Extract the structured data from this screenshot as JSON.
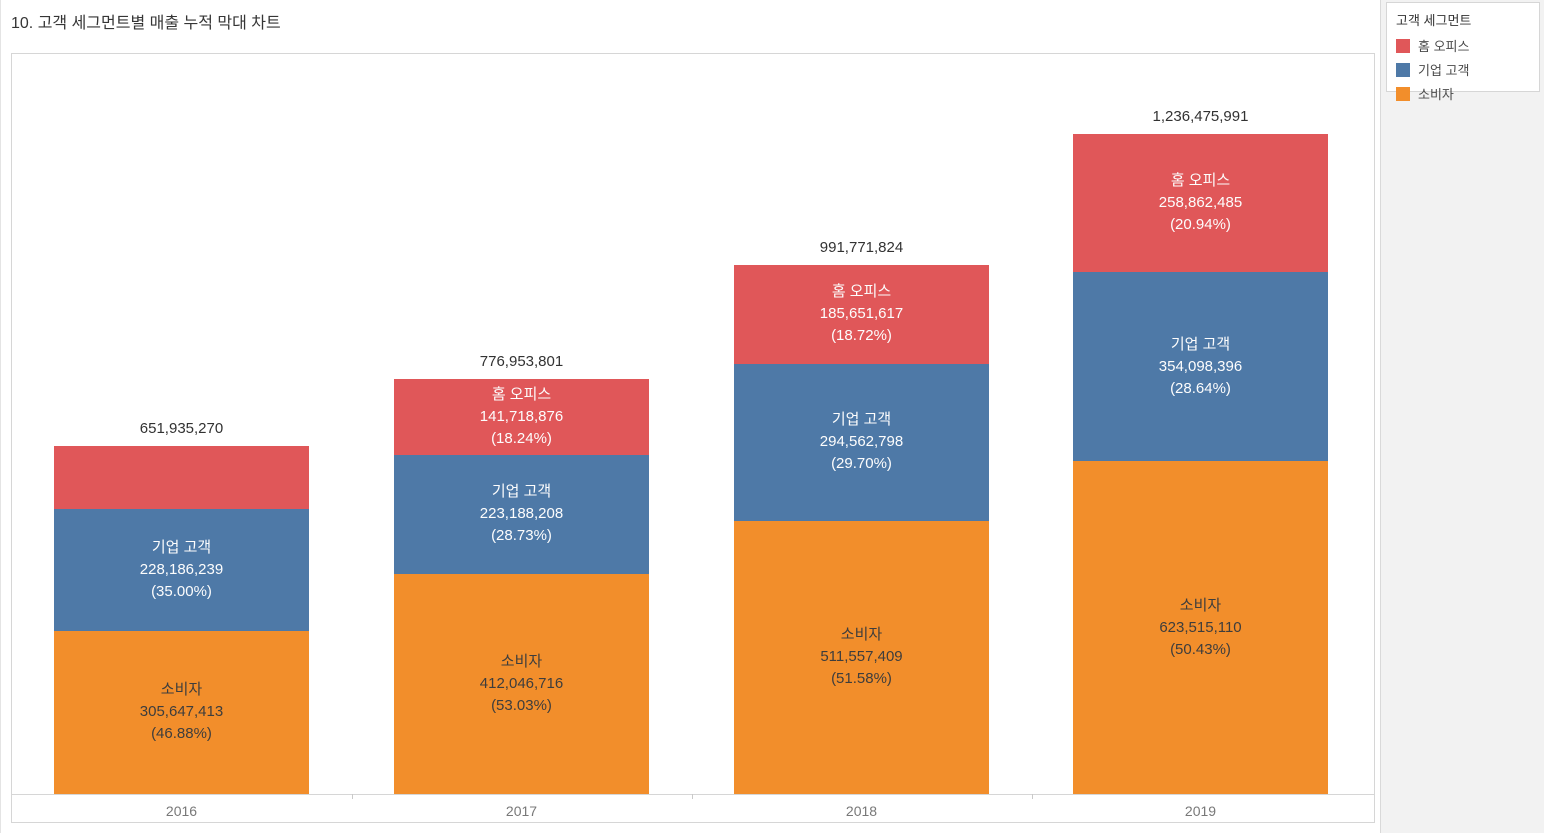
{
  "title": "10. 고객 세그먼트별 매출 누적 막대 차트",
  "legend": {
    "title": "고객 세그먼트",
    "items": [
      {
        "key": "home-office",
        "label": "홈 오피스",
        "color": "#e05759"
      },
      {
        "key": "corporate",
        "label": "기업 고객",
        "color": "#4e79a7"
      },
      {
        "key": "consumer",
        "label": "소비자",
        "color": "#f28e2b"
      }
    ]
  },
  "colors": {
    "home_office": "#e05759",
    "corporate": "#4e79a7",
    "consumer": "#f28e2b",
    "axis": "#d6d6d6",
    "background": "#f2f2f2"
  },
  "chart_data": {
    "type": "bar",
    "stacked": true,
    "title": "10. 고객 세그먼트별 매출 누적 막대 차트",
    "xlabel": "",
    "ylabel": "",
    "ylim": [
      0,
      1236475991
    ],
    "grid": false,
    "legend_position": "top-right",
    "categories": [
      "2016",
      "2017",
      "2018",
      "2019"
    ],
    "series": [
      {
        "name": "홈 오피스",
        "key": "home-office",
        "color": "#e05759",
        "values": [
          118101618,
          141718876,
          185651617,
          258862485
        ]
      },
      {
        "name": "기업 고객",
        "key": "corporate",
        "color": "#4e79a7",
        "values": [
          228186239,
          223188208,
          294562798,
          354098396
        ]
      },
      {
        "name": "소비자",
        "key": "consumer",
        "color": "#f28e2b",
        "values": [
          305647413,
          412046716,
          511557409,
          623515110
        ]
      }
    ],
    "bars": [
      {
        "category": "2016",
        "total": 651935270,
        "total_label": "651,935,270",
        "segments": [
          {
            "key": "home-office",
            "name": "홈 오피스",
            "value": 118101618,
            "label": null
          },
          {
            "key": "corporate",
            "name": "기업 고객",
            "value": 228186239,
            "label": [
              "기업 고객",
              "228,186,239",
              "(35.00%)"
            ]
          },
          {
            "key": "consumer",
            "name": "소비자",
            "value": 305647413,
            "label": [
              "소비자",
              "305,647,413",
              "(46.88%)"
            ]
          }
        ]
      },
      {
        "category": "2017",
        "total": 776953801,
        "total_label": "776,953,801",
        "segments": [
          {
            "key": "home-office",
            "name": "홈 오피스",
            "value": 141718876,
            "label": [
              "홈 오피스",
              "141,718,876",
              "(18.24%)"
            ]
          },
          {
            "key": "corporate",
            "name": "기업 고객",
            "value": 223188208,
            "label": [
              "기업 고객",
              "223,188,208",
              "(28.73%)"
            ]
          },
          {
            "key": "consumer",
            "name": "소비자",
            "value": 412046716,
            "label": [
              "소비자",
              "412,046,716",
              "(53.03%)"
            ]
          }
        ]
      },
      {
        "category": "2018",
        "total": 991771824,
        "total_label": "991,771,824",
        "segments": [
          {
            "key": "home-office",
            "name": "홈 오피스",
            "value": 185651617,
            "label": [
              "홈 오피스",
              "185,651,617",
              "(18.72%)"
            ]
          },
          {
            "key": "corporate",
            "name": "기업 고객",
            "value": 294562798,
            "label": [
              "기업 고객",
              "294,562,798",
              "(29.70%)"
            ]
          },
          {
            "key": "consumer",
            "name": "소비자",
            "value": 511557409,
            "label": [
              "소비자",
              "511,557,409",
              "(51.58%)"
            ]
          }
        ]
      },
      {
        "category": "2019",
        "total": 1236475991,
        "total_label": "1,236,475,991",
        "segments": [
          {
            "key": "home-office",
            "name": "홈 오피스",
            "value": 258862485,
            "label": [
              "홈 오피스",
              "258,862,485",
              "(20.94%)"
            ]
          },
          {
            "key": "corporate",
            "name": "기업 고객",
            "value": 354098396,
            "label": [
              "기업 고객",
              "354,098,396",
              "(28.64%)"
            ]
          },
          {
            "key": "consumer",
            "name": "소비자",
            "value": 623515110,
            "label": [
              "소비자",
              "623,515,110",
              "(50.43%)"
            ]
          }
        ]
      }
    ]
  }
}
